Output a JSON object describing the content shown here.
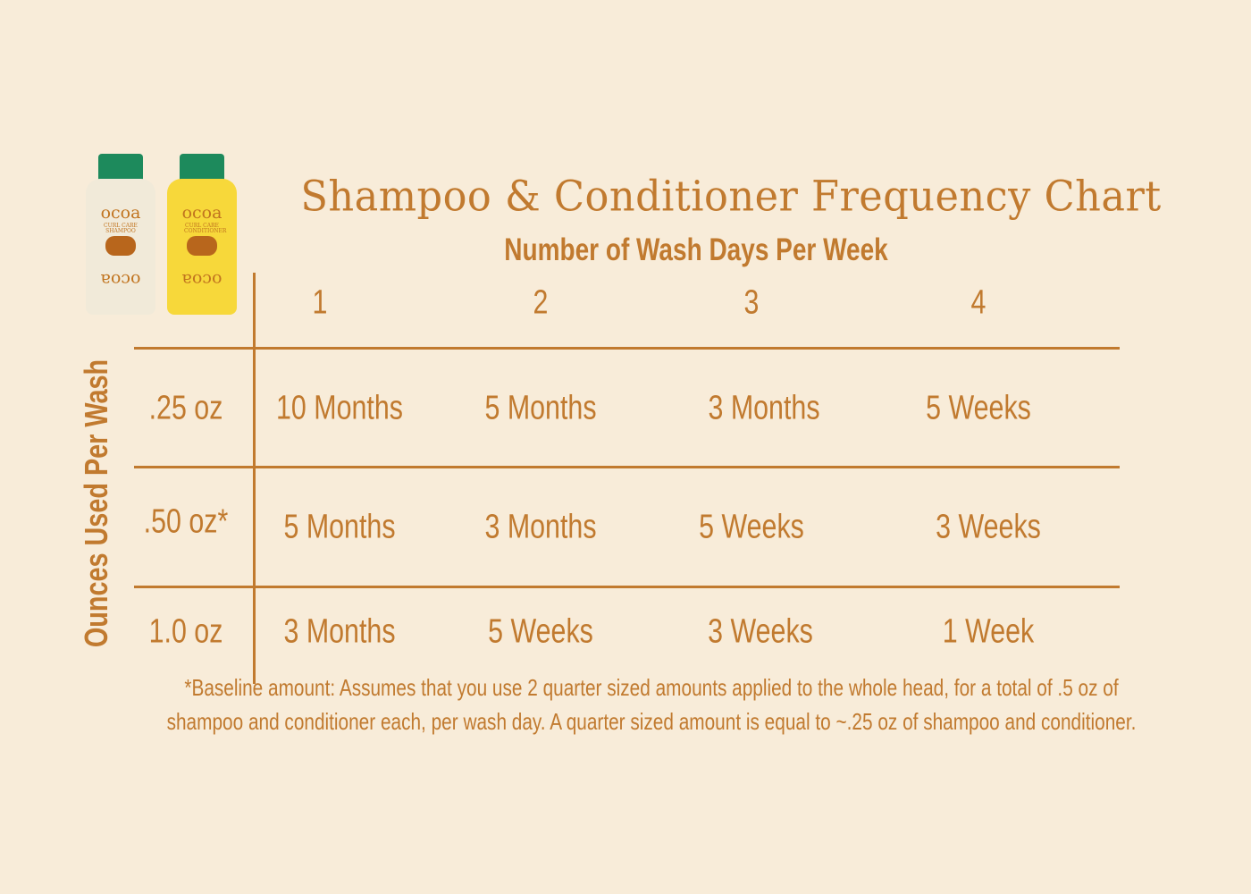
{
  "title": "Shampoo & Conditioner Frequency Chart",
  "colors": {
    "background": "#f8ecd9",
    "text": "#c17a2f",
    "cap": "#1d8a5c",
    "shampoo_bottle": "#f1ead9",
    "conditioner_bottle": "#f7d83a"
  },
  "bottles": [
    {
      "brand": "ocoa",
      "label": "CURL CARE SHAMPOO"
    },
    {
      "brand": "ocoa",
      "label": "CURL CARE CONDITIONER"
    }
  ],
  "chart_data": {
    "type": "table",
    "title": "Shampoo & Conditioner Frequency Chart",
    "xlabel": "Number of Wash Days Per Week",
    "ylabel": "Ounces Used Per Wash",
    "columns": [
      "1",
      "2",
      "3",
      "4"
    ],
    "rows": [
      {
        "label": ".25 oz",
        "values": [
          "10 Months",
          "5 Months",
          "3 Months",
          "5 Weeks"
        ]
      },
      {
        "label": ".50 oz*",
        "values": [
          "5 Months",
          "3 Months",
          "5 Weeks",
          "3 Weeks"
        ]
      },
      {
        "label": "1.0 oz",
        "values": [
          "3 Months",
          "5 Weeks",
          "3 Weeks",
          "1 Week"
        ]
      }
    ]
  },
  "footnote": {
    "line1": "*Baseline amount: Assumes that you use 2 quarter sized amounts applied to the whole head, for a total of .5 oz of",
    "line2": "shampoo and conditioner each, per wash day. A quarter sized amount is equal to ~.25 oz of shampoo and conditioner."
  }
}
